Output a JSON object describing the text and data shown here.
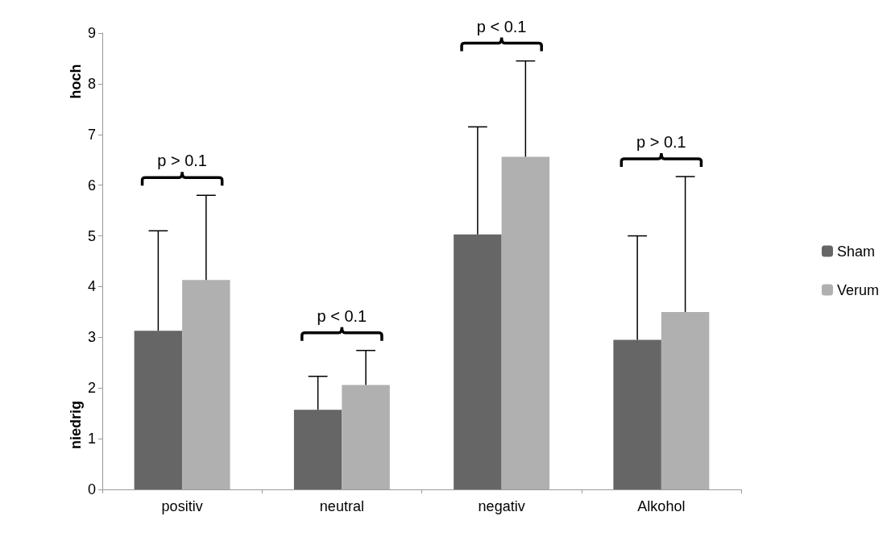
{
  "chart_data": {
    "type": "bar",
    "categories": [
      "positiv",
      "neutral",
      "negativ",
      "Alkohol"
    ],
    "series": [
      {
        "name": "Sham",
        "color": "#666666",
        "values": [
          3.13,
          1.57,
          5.03,
          2.95
        ],
        "errors": [
          [
            3.13,
            5.1
          ],
          [
            1.57,
            2.23
          ],
          [
            5.03,
            7.15
          ],
          [
            2.95,
            5.0
          ]
        ]
      },
      {
        "name": "Verum",
        "color": "#b0b0b0",
        "values": [
          4.13,
          2.06,
          6.56,
          3.5
        ],
        "errors": [
          [
            4.13,
            5.8
          ],
          [
            2.06,
            2.74
          ],
          [
            6.56,
            8.45
          ],
          [
            3.5,
            6.17
          ]
        ]
      }
    ],
    "ylim": [
      0,
      9
    ],
    "yticks": [
      0,
      1,
      2,
      3,
      4,
      5,
      6,
      7,
      8,
      9
    ],
    "grid": false,
    "legend": "right",
    "annotations": [
      "hoch",
      "niedrig",
      "p > 0.1",
      "p < 0.1",
      "p < 0.1",
      "p > 0.1"
    ]
  }
}
